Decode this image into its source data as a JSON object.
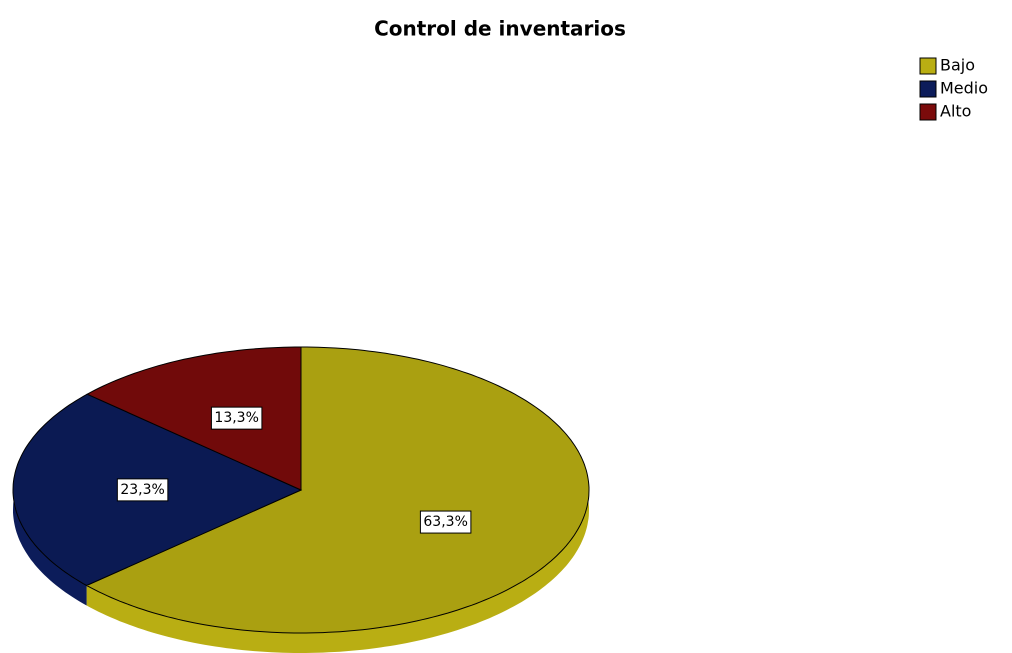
{
  "chart_data": {
    "type": "pie",
    "title": "Control de inventarios",
    "categories": [
      "Bajo",
      "Medio",
      "Alto"
    ],
    "values": [
      63.3,
      23.3,
      13.3
    ],
    "value_labels": [
      "63,3%",
      "23,3%",
      "13,3%"
    ],
    "colors": [
      "#b9ae13",
      "#0c1c5a",
      "#7b0b0b"
    ],
    "legend": "top-right"
  }
}
